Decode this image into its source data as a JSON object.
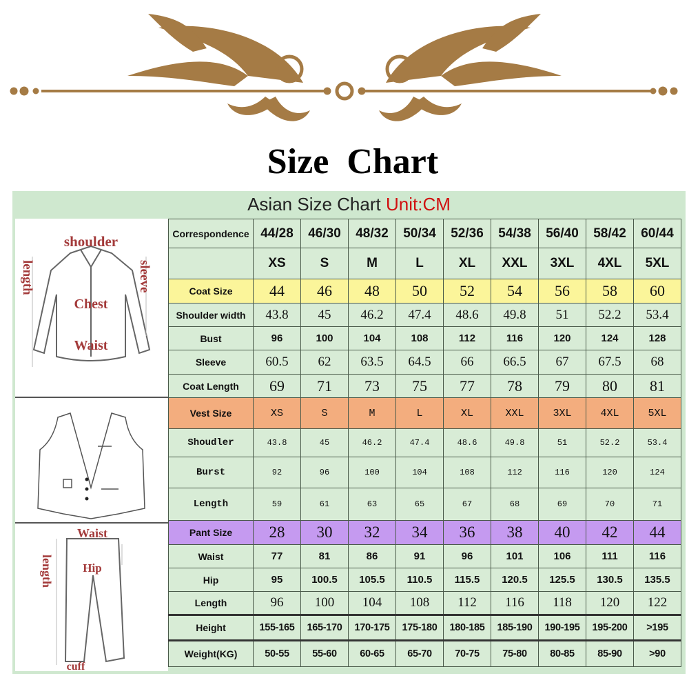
{
  "title": "Size  Chart",
  "subtitle": "Asian Size Chart",
  "unit": "Unit:CM",
  "colors": {
    "ornament": "#a57b45",
    "sheet": "#cfe8cf",
    "coat_row": "#fbf59a",
    "vest_row": "#f3ad7e",
    "pant_row": "#c59af0",
    "size_letters": "#d01010"
  },
  "diagram_labels": {
    "jacket": {
      "shoulder": "shoulder",
      "length": "length",
      "sleeve": "sleeve",
      "chest": "Chest",
      "waist": "Waist"
    },
    "pants": {
      "waist": "Waist",
      "length": "length",
      "hip": "Hip",
      "cuff": "cuff"
    }
  },
  "rows": [
    {
      "label": "Correspondence",
      "cls": "corr",
      "values": [
        "44/28",
        "46/30",
        "48/32",
        "50/34",
        "52/36",
        "54/38",
        "56/40",
        "58/42",
        "60/44"
      ]
    },
    {
      "label": "",
      "cls": "letters",
      "values": [
        "XS",
        "S",
        "M",
        "L",
        "XL",
        "XXL",
        "3XL",
        "4XL",
        "5XL"
      ]
    },
    {
      "label": "Coat Size",
      "cls": "coat serifbig",
      "values": [
        "44",
        "46",
        "48",
        "50",
        "52",
        "54",
        "56",
        "58",
        "60"
      ]
    },
    {
      "label": "Shoulder width",
      "cls": "serifmid",
      "values": [
        "43.8",
        "45",
        "46.2",
        "47.4",
        "48.6",
        "49.8",
        "51",
        "52.2",
        "53.4"
      ]
    },
    {
      "label": "Bust",
      "cls": "boldsm",
      "values": [
        "96",
        "100",
        "104",
        "108",
        "112",
        "116",
        "120",
        "124",
        "128"
      ]
    },
    {
      "label": "Sleeve",
      "cls": "serifmid",
      "values": [
        "60.5",
        "62",
        "63.5",
        "64.5",
        "66",
        "66.5",
        "67",
        "67.5",
        "68"
      ]
    },
    {
      "label": "Coat Length",
      "cls": "serifbig",
      "values": [
        "69",
        "71",
        "73",
        "75",
        "77",
        "78",
        "79",
        "80",
        "81"
      ]
    },
    {
      "label": "Vest Size",
      "cls": "vest",
      "values": [
        "XS",
        "S",
        "M",
        "L",
        "XL",
        "XXL",
        "3XL",
        "4XL",
        "5XL"
      ]
    },
    {
      "label": "Shoudler",
      "cls": "mono",
      "values": [
        "43.8",
        "45",
        "46.2",
        "47.4",
        "48.6",
        "49.8",
        "51",
        "52.2",
        "53.4"
      ]
    },
    {
      "label": "Burst",
      "cls": "mono",
      "values": [
        "92",
        "96",
        "100",
        "104",
        "108",
        "112",
        "116",
        "120",
        "124"
      ]
    },
    {
      "label": "Length",
      "cls": "mono",
      "values": [
        "59",
        "61",
        "63",
        "65",
        "67",
        "68",
        "69",
        "70",
        "71"
      ]
    },
    {
      "label": "Pant Size",
      "cls": "pant",
      "values": [
        "28",
        "30",
        "32",
        "34",
        "36",
        "38",
        "40",
        "42",
        "44"
      ]
    },
    {
      "label": "Waist",
      "cls": "boldsm",
      "values": [
        "77",
        "81",
        "86",
        "91",
        "96",
        "101",
        "106",
        "111",
        "116"
      ]
    },
    {
      "label": "Hip",
      "cls": "boldsm",
      "values": [
        "95",
        "100.5",
        "105.5",
        "110.5",
        "115.5",
        "120.5",
        "125.5",
        "130.5",
        "135.5"
      ]
    },
    {
      "label": "Length",
      "cls": "serifmid",
      "values": [
        "96",
        "100",
        "104",
        "108",
        "112",
        "116",
        "118",
        "120",
        "122"
      ]
    },
    {
      "label": "Height",
      "cls": "big",
      "values": [
        "155-165",
        "165-170",
        "170-175",
        "175-180",
        "180-185",
        "185-190",
        "190-195",
        "195-200",
        ">195"
      ]
    },
    {
      "label": "Weight(KG)",
      "cls": "big",
      "values": [
        "50-55",
        "55-60",
        "60-65",
        "65-70",
        "70-75",
        "75-80",
        "80-85",
        "85-90",
        ">90"
      ]
    }
  ]
}
